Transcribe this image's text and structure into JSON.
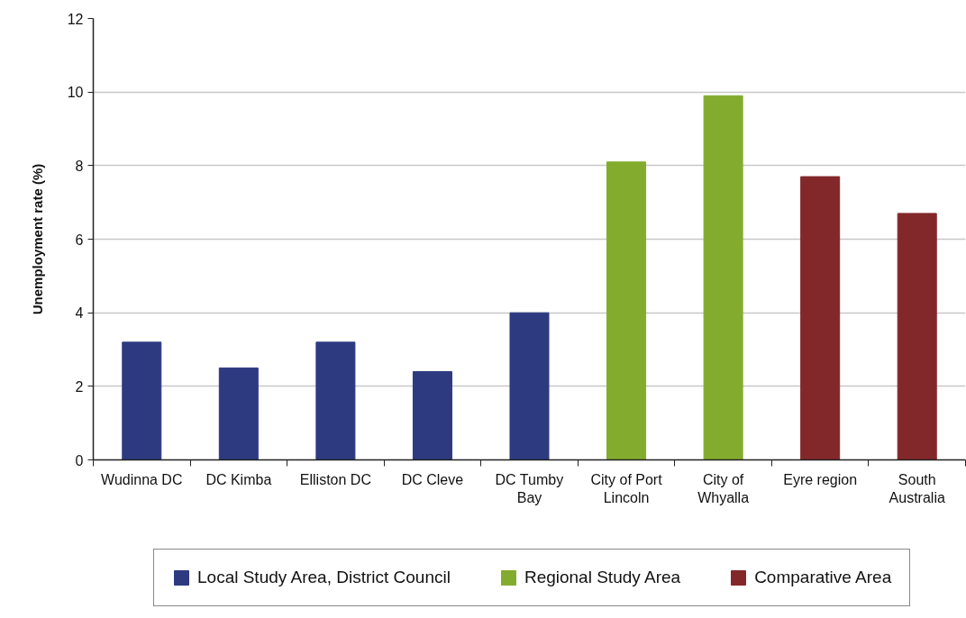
{
  "chart_data": {
    "type": "bar",
    "ylabel": "Unemployment rate (%)",
    "categories": [
      "Wudinna DC",
      "DC Kimba",
      "Elliston DC",
      "DC Cleve",
      "DC Tumby Bay",
      "City of Port Lincoln",
      "City of Whyalla",
      "Eyre region",
      "South Australia"
    ],
    "series": [
      {
        "name": "Local Study Area, District Council",
        "color": "#2e3a80",
        "values": [
          3.2,
          2.5,
          3.2,
          2.4,
          4.0,
          null,
          null,
          null,
          null
        ]
      },
      {
        "name": "Regional Study Area",
        "color": "#83ac2f",
        "values": [
          null,
          null,
          null,
          null,
          null,
          8.1,
          9.9,
          null,
          null
        ]
      },
      {
        "name": "Comparative Area",
        "color": "#83282a",
        "values": [
          null,
          null,
          null,
          null,
          null,
          null,
          null,
          7.7,
          6.7
        ]
      }
    ],
    "ylim": [
      0,
      12
    ],
    "yticks": [
      0,
      2,
      4,
      6,
      8,
      10,
      12
    ],
    "grid": "y",
    "legend": "bottom"
  }
}
